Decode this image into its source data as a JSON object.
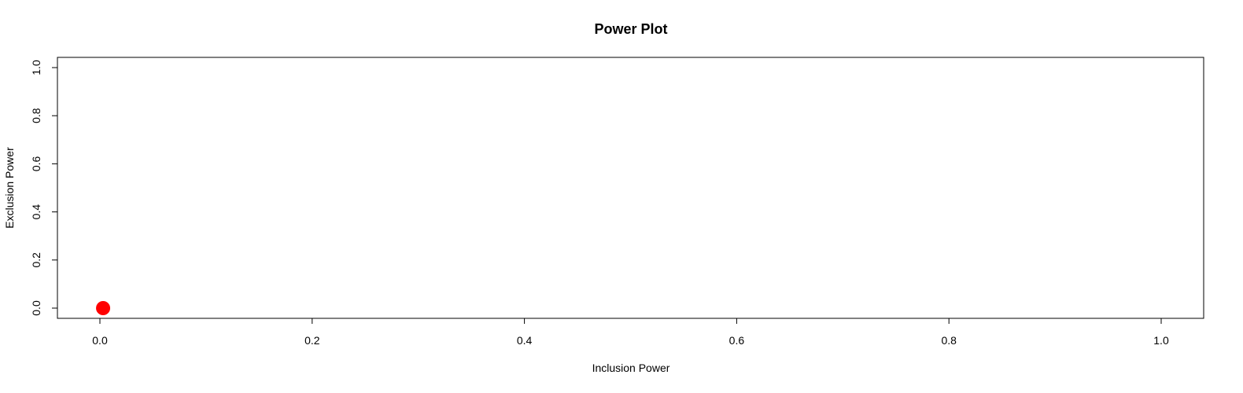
{
  "chart_data": {
    "type": "scatter",
    "title": "Power Plot",
    "xlabel": "Inclusion Power",
    "ylabel": "Exclusion Power",
    "xlim": [
      0,
      1
    ],
    "ylim": [
      0,
      1
    ],
    "xticks": [
      0.0,
      0.2,
      0.4,
      0.6,
      0.8,
      1.0
    ],
    "yticks": [
      0.0,
      0.2,
      0.4,
      0.6,
      0.8,
      1.0
    ],
    "xtick_labels": [
      "0.0",
      "0.2",
      "0.4",
      "0.6",
      "0.8",
      "1.0"
    ],
    "ytick_labels": [
      "0.0",
      "0.2",
      "0.4",
      "0.6",
      "0.8",
      "1.0"
    ],
    "grid": false,
    "legend": "none",
    "series": [
      {
        "x": [
          0.003
        ],
        "y": [
          0.0
        ],
        "color": "#ff0000"
      }
    ]
  }
}
